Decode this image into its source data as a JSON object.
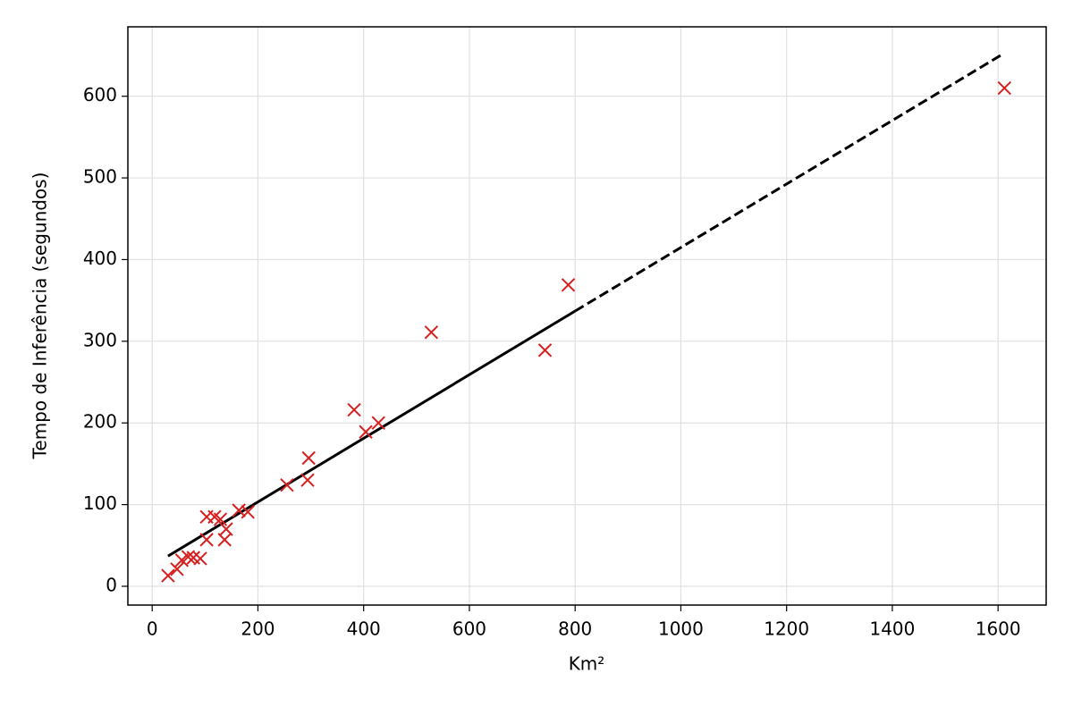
{
  "chart_data": {
    "type": "scatter",
    "xlabel": "Km²",
    "ylabel": "Tempo de Inferência (segundos)",
    "xlim": [
      -46,
      1691
    ],
    "ylim": [
      -23,
      685
    ],
    "xticks": [
      0,
      200,
      400,
      600,
      800,
      1000,
      1200,
      1400,
      1600
    ],
    "yticks": [
      0,
      100,
      200,
      300,
      400,
      500,
      600
    ],
    "grid": true,
    "series": [
      {
        "type": "scatter",
        "marker": "x",
        "color": "#d62020",
        "x": [
          30,
          47,
          56,
          68,
          78,
          91,
          103,
          103,
          118,
          129,
          137,
          140,
          164,
          181,
          255,
          296,
          294,
          382,
          404,
          428,
          528,
          743,
          787,
          1612
        ],
        "values": [
          13,
          21,
          32,
          36,
          35,
          34,
          85,
          57,
          85,
          82,
          57,
          70,
          93,
          91,
          124,
          157,
          130,
          216,
          189,
          200,
          311,
          289,
          369,
          610
        ]
      },
      {
        "type": "line",
        "dash": "solid",
        "color": "#000000",
        "x": [
          30,
          800
        ],
        "values": [
          37,
          337
        ]
      },
      {
        "type": "line",
        "dash": "dashed",
        "color": "#000000",
        "x": [
          800,
          1610
        ],
        "values": [
          337,
          652
        ]
      }
    ]
  }
}
